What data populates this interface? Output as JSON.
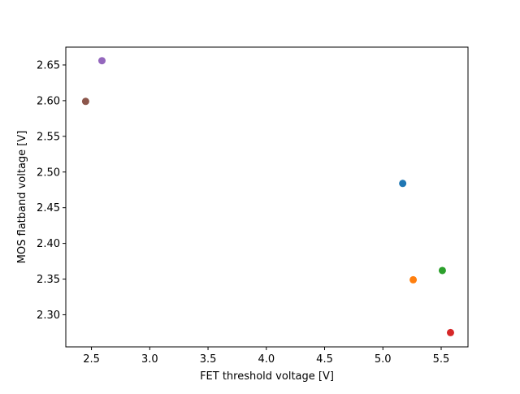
{
  "chart_data": {
    "type": "scatter",
    "title": "",
    "xlabel": "FET threshold voltage [V]",
    "ylabel": "MOS flatband voltage [V]",
    "xlim": [
      2.28,
      5.73
    ],
    "ylim": [
      2.255,
      2.675
    ],
    "xticks": [
      2.5,
      3.0,
      3.5,
      4.0,
      4.5,
      5.0,
      5.5
    ],
    "xtick_labels": [
      "2.5",
      "3.0",
      "3.5",
      "4.0",
      "4.5",
      "5.0",
      "5.5"
    ],
    "yticks": [
      2.3,
      2.35,
      2.4,
      2.45,
      2.5,
      2.55,
      2.6,
      2.65
    ],
    "ytick_labels": [
      "2.30",
      "2.35",
      "2.40",
      "2.45",
      "2.50",
      "2.55",
      "2.60",
      "2.65"
    ],
    "grid": false,
    "legend": "none",
    "points": [
      {
        "x": 5.17,
        "y": 2.484,
        "color": "#1f77b4"
      },
      {
        "x": 5.26,
        "y": 2.349,
        "color": "#ff7f0e"
      },
      {
        "x": 5.51,
        "y": 2.362,
        "color": "#2ca02c"
      },
      {
        "x": 5.58,
        "y": 2.275,
        "color": "#d62728"
      },
      {
        "x": 2.59,
        "y": 2.656,
        "color": "#9467bd"
      },
      {
        "x": 2.45,
        "y": 2.599,
        "color": "#8c564b"
      }
    ]
  }
}
